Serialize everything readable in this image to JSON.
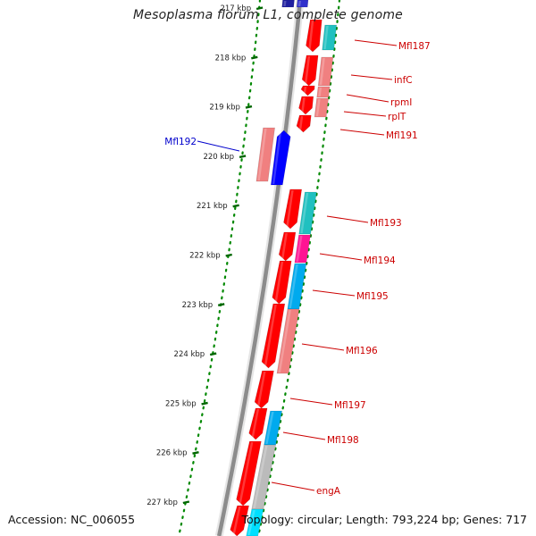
{
  "title": "Mesoplasma florum L1, complete genome",
  "accession": "Accession: NC_006055",
  "summary": "Topology: circular; Length: 793,224 bp; Genes: 717",
  "ticks": [
    {
      "label": "217 kbp"
    },
    {
      "label": "218 kbp"
    },
    {
      "label": "219 kbp"
    },
    {
      "label": "220 kbp"
    },
    {
      "label": "221 kbp"
    },
    {
      "label": "222 kbp"
    },
    {
      "label": "223 kbp"
    },
    {
      "label": "224 kbp"
    },
    {
      "label": "225 kbp"
    },
    {
      "label": "226 kbp"
    },
    {
      "label": "227 kbp"
    }
  ],
  "gene_labels": [
    {
      "name": "Mfl187",
      "color": "#cc0000"
    },
    {
      "name": "infC",
      "color": "#cc0000"
    },
    {
      "name": "rpmI",
      "color": "#cc0000"
    },
    {
      "name": "rplT",
      "color": "#cc0000"
    },
    {
      "name": "Mfl191",
      "color": "#cc0000"
    },
    {
      "name": "Mfl192",
      "color": "#0000cc"
    },
    {
      "name": "Mfl193",
      "color": "#cc0000"
    },
    {
      "name": "Mfl194",
      "color": "#cc0000"
    },
    {
      "name": "Mfl195",
      "color": "#cc0000"
    },
    {
      "name": "Mfl196",
      "color": "#cc0000"
    },
    {
      "name": "Mfl197",
      "color": "#cc0000"
    },
    {
      "name": "Mfl198",
      "color": "#cc0000"
    },
    {
      "name": "engA",
      "color": "#cc0000"
    }
  ],
  "colors": {
    "cds_forward": "#ff0000",
    "cds_reverse": "#0000ff",
    "cog_salmon": "#f08080",
    "cog_teal": "#20c0c0",
    "cog_pink": "#ff1493",
    "cog_sky": "#00aaee",
    "cog_gray": "#bbbbbb",
    "backbone": "#8c8c8c",
    "tick": "#006600",
    "dotted_ring": "#008800"
  }
}
